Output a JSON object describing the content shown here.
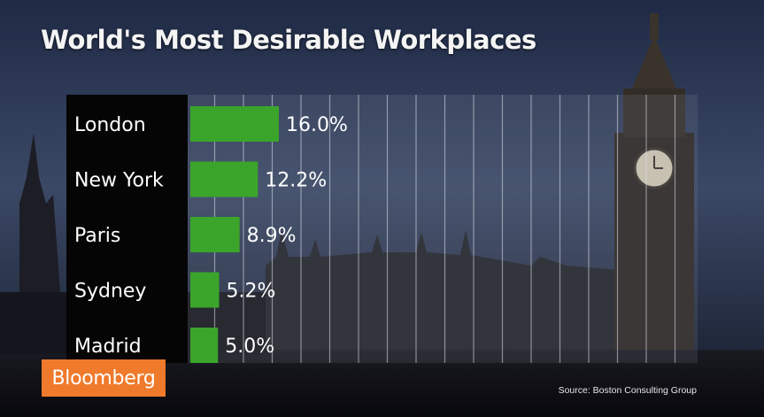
{
  "colors": {
    "bar": "#3aa52a",
    "brand_bg": "#ef7a2b",
    "label_panel": "#050505",
    "text": "#ffffff"
  },
  "chart_data": {
    "type": "bar",
    "orientation": "horizontal",
    "title": "World's Most Desirable Workplaces",
    "categories": [
      "London",
      "New York",
      "Paris",
      "Sydney",
      "Madrid"
    ],
    "values": [
      16.0,
      12.2,
      8.9,
      5.2,
      5.0
    ],
    "value_labels": [
      "16.0%",
      "12.2%",
      "8.9%",
      "5.2%",
      "5.0%"
    ],
    "unit": "%",
    "xlim": [
      0,
      75
    ],
    "grid": true
  },
  "source": "Source: Boston Consulting Group",
  "brand": "Bloomberg"
}
